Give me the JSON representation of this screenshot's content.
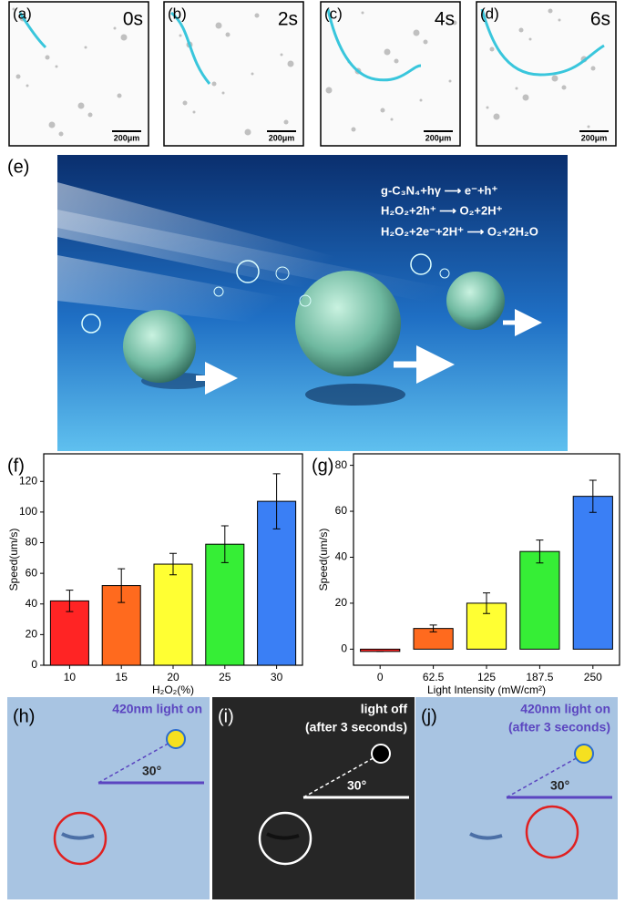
{
  "panels_top": [
    {
      "label": "(a)",
      "time": "0s",
      "scale": "200μm"
    },
    {
      "label": "(b)",
      "time": "2s",
      "scale": "200μm"
    },
    {
      "label": "(c)",
      "time": "4s",
      "scale": "200μm"
    },
    {
      "label": "(d)",
      "time": "6s",
      "scale": "200μm"
    }
  ],
  "panel_e": {
    "label": "(e)",
    "equations": [
      "g-C₃N₄+hγ ⟶ e⁻+h⁺",
      "H₂O₂+2h⁺ ⟶ O₂+2H⁺",
      "H₂O₂+2e⁻+2H⁺ ⟶ O₂+2H₂O"
    ]
  },
  "chart_data": [
    {
      "type": "bar",
      "panel_label": "(f)",
      "xlabel": "H₂O₂(%)",
      "ylabel": "Speed(um/s)",
      "categories": [
        "10",
        "15",
        "20",
        "25",
        "30"
      ],
      "values": [
        42,
        52,
        66,
        79,
        107
      ],
      "errors": [
        7,
        11,
        7,
        12,
        18
      ],
      "colors": [
        "#ff2424",
        "#ff6a1e",
        "#ffff33",
        "#36ee36",
        "#3a7ff5"
      ],
      "ylim": [
        0,
        138
      ],
      "yticks": [
        0,
        20,
        40,
        60,
        80,
        100,
        120
      ]
    },
    {
      "type": "bar",
      "panel_label": "(g)",
      "xlabel": "Light Intensity (mW/cm²)",
      "ylabel": "Speed(um/s)",
      "categories": [
        "0",
        "62.5",
        "125",
        "187.5",
        "250"
      ],
      "values": [
        -1,
        9,
        20,
        42.5,
        66.5
      ],
      "errors": [
        0,
        1.5,
        4.5,
        5,
        7
      ],
      "colors": [
        "#ff2424",
        "#ff6a1e",
        "#ffff33",
        "#36ee36",
        "#3a7ff5"
      ],
      "ylim": [
        -7,
        85
      ],
      "yticks": [
        0,
        20,
        40,
        60,
        80
      ]
    }
  ],
  "panels_bottom": [
    {
      "label": "(h)",
      "lines": [
        "420nm light on"
      ],
      "angle": "30°"
    },
    {
      "label": "(i)",
      "lines": [
        "light off",
        "(after 3 seconds)"
      ],
      "angle": "30°"
    },
    {
      "label": "(j)",
      "lines": [
        "420nm light on",
        "(after 3 seconds)"
      ],
      "angle": "30°"
    }
  ]
}
